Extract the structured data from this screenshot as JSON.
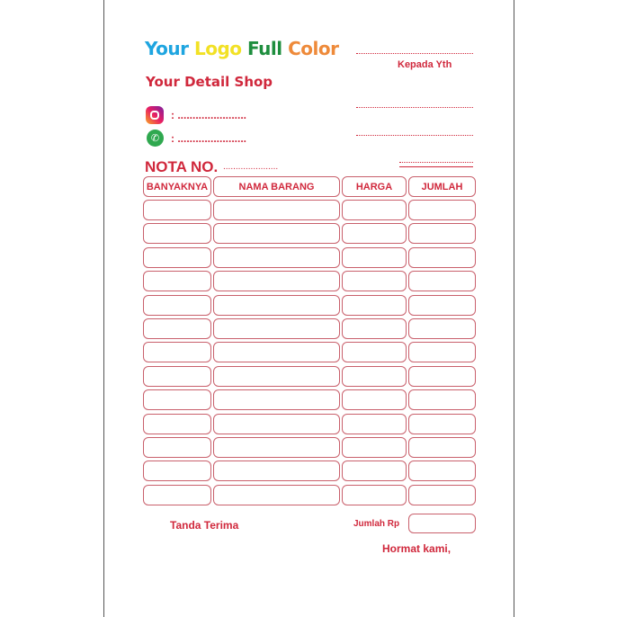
{
  "logo": {
    "words": [
      "Your",
      "Logo",
      "Full",
      "Color"
    ],
    "colors": [
      "#1ea5e0",
      "#f2e125",
      "#1e8e3e",
      "#ee8a3a"
    ]
  },
  "shop_detail": "Your Detail Shop",
  "instagram": {
    "icon": "instagram-icon",
    "value": ": ......................."
  },
  "whatsapp": {
    "icon": "whatsapp-icon",
    "value": ": ......................."
  },
  "recipient_label": "Kepada Yth",
  "nota_label": "NOTA NO.",
  "nota_value": "......................",
  "table": {
    "headers": [
      "BANYAKNYA",
      "NAMA BARANG",
      "HARGA",
      "JUMLAH"
    ],
    "row_count": 13
  },
  "footer": {
    "tanda_terima": "Tanda Terima",
    "jumlah_rp": "Jumlah Rp",
    "hormat_kami": "Hormat kami,"
  },
  "accent_color": "#d0283c"
}
